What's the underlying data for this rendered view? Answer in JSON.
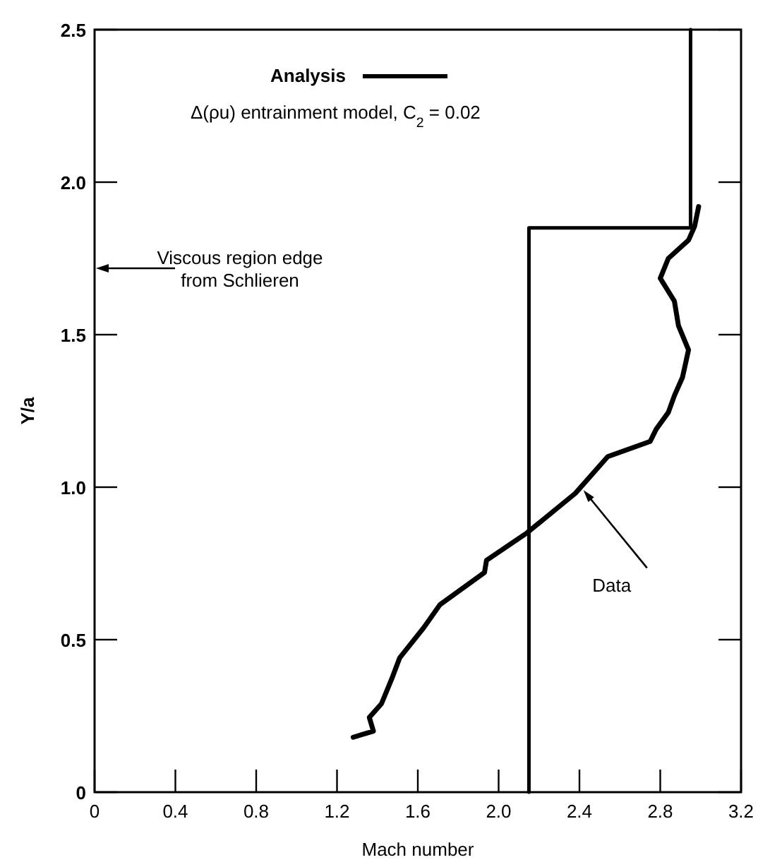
{
  "chart_data": {
    "type": "line",
    "xlabel": "Mach number",
    "ylabel": "Y/a",
    "xlim": [
      0,
      3.2
    ],
    "xticks": [
      0,
      0.4,
      0.8,
      1.2,
      1.6,
      {
        "value": 2,
        "label": "2.0"
      },
      2.4,
      2.8,
      3.2
    ],
    "ylim": [
      0,
      2.5
    ],
    "yticks": [
      0,
      0.5,
      {
        "value": 1,
        "label": "1.0"
      },
      1.5,
      {
        "value": 2,
        "label": "2.0"
      },
      2.5
    ],
    "grid": false,
    "legend": "top",
    "marker": "none",
    "line_style": "solid",
    "series": [
      {
        "name": "Analysis",
        "color": "#000000",
        "x": [
          2.15,
          2.15,
          2.95,
          2.95
        ],
        "values": [
          0,
          1.85,
          1.85,
          2.5
        ]
      },
      {
        "color": "#000000",
        "x": [
          1.28,
          1.38,
          1.36,
          1.42,
          1.47,
          1.51,
          1.63,
          1.71,
          1.93,
          1.94,
          2.14,
          2.38,
          2.54,
          2.75,
          2.78,
          2.84,
          2.87,
          2.91,
          2.94,
          2.89,
          2.87,
          2.8,
          2.84,
          2.94,
          2.97,
          2.99
        ],
        "values": [
          0.18,
          0.2,
          0.245,
          0.29,
          0.37,
          0.44,
          0.54,
          0.615,
          0.72,
          0.76,
          0.85,
          0.98,
          1.1,
          1.15,
          1.19,
          1.245,
          1.3,
          1.36,
          1.45,
          1.53,
          1.61,
          1.685,
          1.75,
          1.81,
          1.855,
          1.92
        ]
      }
    ],
    "annotations": [
      "Δ(ρu) entrainment model, C$_{2}$ = 0.02",
      "Viscous region edge from Schlieren",
      {
        "text": "Data",
        "x": 2.42,
        "y": 0.99
      }
    ]
  }
}
